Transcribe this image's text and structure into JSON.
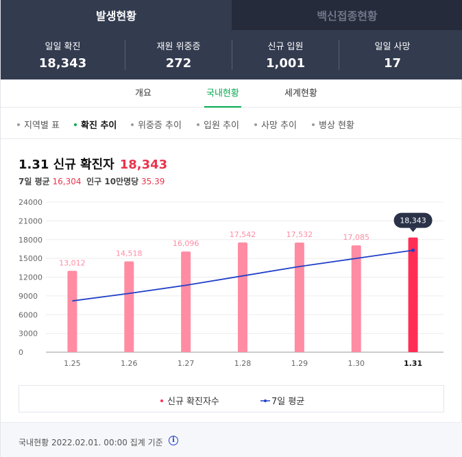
{
  "top_tabs": [
    {
      "label": "발생현황"
    },
    {
      "label": "백신접종현황"
    }
  ],
  "stats": [
    {
      "label": "일일 확진",
      "value": "18,343"
    },
    {
      "label": "재원 위중증",
      "value": "272"
    },
    {
      "label": "신규 입원",
      "value": "1,001"
    },
    {
      "label": "일일 사망",
      "value": "17"
    }
  ],
  "sub_tabs": [
    {
      "label": "개요"
    },
    {
      "label": "국내현황"
    },
    {
      "label": "세계현황"
    }
  ],
  "chips": [
    {
      "label": "지역별 표"
    },
    {
      "label": "확진 추이"
    },
    {
      "label": "위중증 추이"
    },
    {
      "label": "입원 추이"
    },
    {
      "label": "사망 추이"
    },
    {
      "label": "병상 현황"
    }
  ],
  "chart_header": {
    "title": "1.31 신규 확진자",
    "title_value": "18,343",
    "avg_label": "7일 평균",
    "avg_value": "16,304",
    "per_label": "인구 10만명당",
    "per_value": "35.39"
  },
  "chart_data": {
    "type": "bar",
    "categories": [
      "1.25",
      "1.26",
      "1.27",
      "1.28",
      "1.29",
      "1.30",
      "1.31"
    ],
    "series": [
      {
        "name": "신규 확진자수",
        "type": "bar",
        "values": [
          13012,
          14518,
          16096,
          17542,
          17532,
          17085,
          18343
        ],
        "labels": [
          "13,012",
          "14,518",
          "16,096",
          "17,542",
          "17,532",
          "17,085",
          "18,343"
        ]
      },
      {
        "name": "7일 평균",
        "type": "line",
        "values": [
          8200,
          9400,
          10700,
          12200,
          13700,
          15000,
          16304
        ]
      }
    ],
    "yticks": [
      0,
      3000,
      6000,
      9000,
      12000,
      15000,
      18000,
      21000,
      24000
    ],
    "ylim": [
      0,
      24000
    ],
    "highlight_index": 6,
    "grid": true,
    "legend_position": "bottom",
    "colors": {
      "bar": "#ff8ca3",
      "bar_highlight": "#ff2e55",
      "line": "#1f3fc8",
      "tooltip_bg": "#2a3248",
      "bar_label": "#ff8ca3"
    }
  },
  "legend": {
    "bar_label": "신규 확진자수",
    "line_label": "7일 평균"
  },
  "footer": {
    "text": "국내현황 2022.02.01. 00:00 집계 기준",
    "icon": "info-icon"
  }
}
